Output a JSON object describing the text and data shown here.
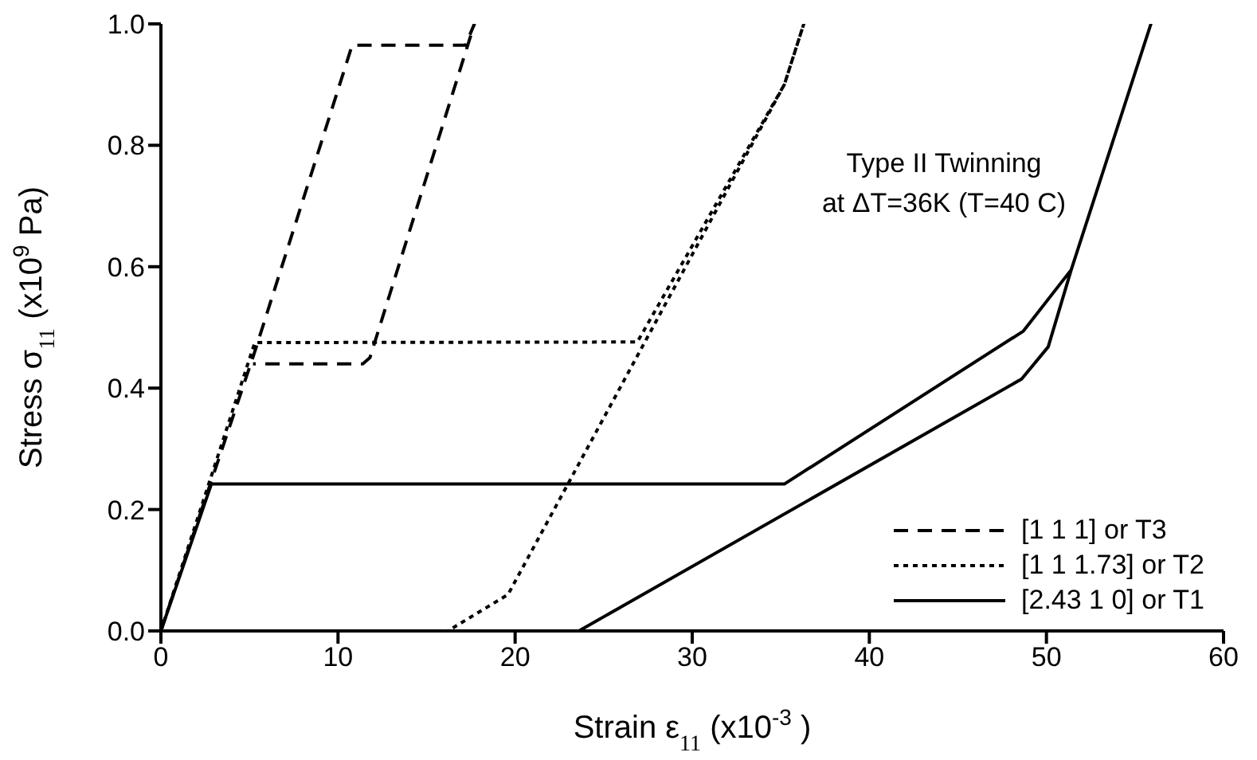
{
  "chart_data": {
    "type": "line",
    "xlabel": "Strain ε$_{11}$ (x10$^{-3}$ )",
    "ylabel": "Stress σ$_{11}$ (x10$^{9}$ Pa)",
    "annotations": [
      "Type II Twinning\nat ΔT=36K (T=40 C)"
    ],
    "series": [
      {
        "name": "[1 1 1] or T3",
        "color": "#000000",
        "line_style": "dashed",
        "x": [
          0,
          5.3,
          10.8,
          17.2,
          17.7,
          11.8,
          11.4,
          5.2
        ],
        "values": [
          0,
          0.46,
          0.965,
          0.965,
          1.0,
          0.45,
          0.44,
          0.44
        ]
      },
      {
        "name": "[1 1 1.73] or T2",
        "color": "#000000",
        "line_style": "dotted",
        "x": [
          0,
          5.3,
          26.9,
          35.2,
          36.3,
          35.2,
          19.6,
          16.2
        ],
        "values": [
          0,
          0.475,
          0.476,
          0.9,
          1.0,
          0.9,
          0.06,
          0
        ]
      },
      {
        "name": "[2.43 1 0] or T1",
        "color": "#000000",
        "line_style": "solid",
        "x": [
          0,
          2.85,
          35.2,
          48.7,
          51.4,
          55.9,
          51.4,
          50.1,
          48.6,
          23.6
        ],
        "values": [
          0,
          0.242,
          0.242,
          0.494,
          0.595,
          1.0,
          0.595,
          0.468,
          0.415,
          0
        ]
      }
    ],
    "xlim": [
      0,
      60
    ],
    "xticks": [
      0,
      10,
      20,
      30,
      40,
      50,
      60
    ],
    "ylim": [
      0,
      1
    ],
    "yticks": [
      {
        "value": 0,
        "label": "0.0"
      },
      {
        "value": 0.2,
        "label": "0.2"
      },
      {
        "value": 0.4,
        "label": "0.4"
      },
      {
        "value": 0.6,
        "label": "0.6"
      },
      {
        "value": 0.8,
        "label": "0.8"
      },
      {
        "value": 1,
        "label": "1.0"
      }
    ],
    "legend": "bottom right",
    "marker": "none"
  }
}
